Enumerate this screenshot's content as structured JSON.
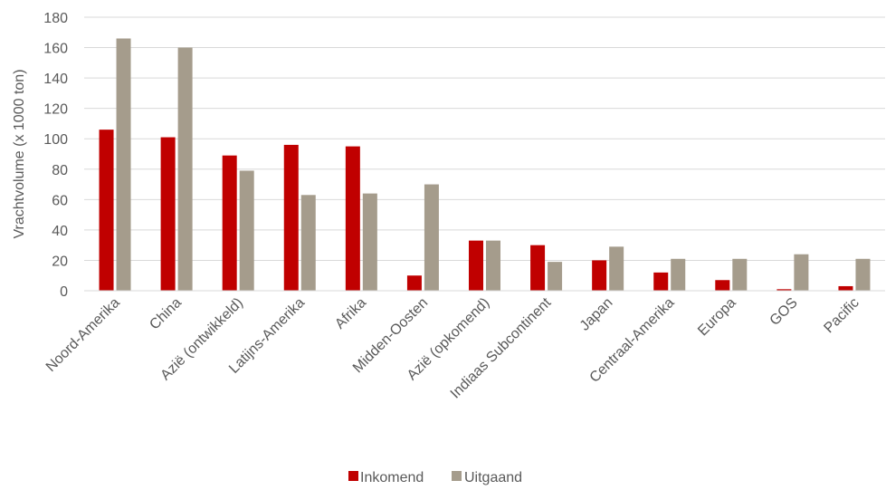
{
  "chart_data": {
    "type": "bar",
    "title": "",
    "xlabel": "",
    "ylabel": "Vrachtvolume (x 1000 ton)",
    "ylim": [
      0,
      180
    ],
    "yticks": [
      0,
      20,
      40,
      60,
      80,
      100,
      120,
      140,
      160,
      180
    ],
    "grid": true,
    "legend_position": "bottom",
    "categories": [
      "Noord-Amerika",
      "China",
      "Azië (ontwikkeld)",
      "Latijns-Amerika",
      "Afrika",
      "Midden-Oosten",
      "Azië (opkomend)",
      "Indiaas Subcontinent",
      "Japan",
      "Centraal-Amerika",
      "Europa",
      "GOS",
      "Pacific"
    ],
    "series": [
      {
        "name": "Inkomend",
        "color": "#C00000",
        "values": [
          106,
          101,
          89,
          96,
          95,
          10,
          33,
          30,
          20,
          12,
          7,
          1,
          3
        ]
      },
      {
        "name": "Uitgaand",
        "color": "#A59C8C",
        "values": [
          166,
          160,
          79,
          63,
          64,
          70,
          33,
          19,
          29,
          21,
          21,
          24,
          21
        ]
      }
    ]
  }
}
